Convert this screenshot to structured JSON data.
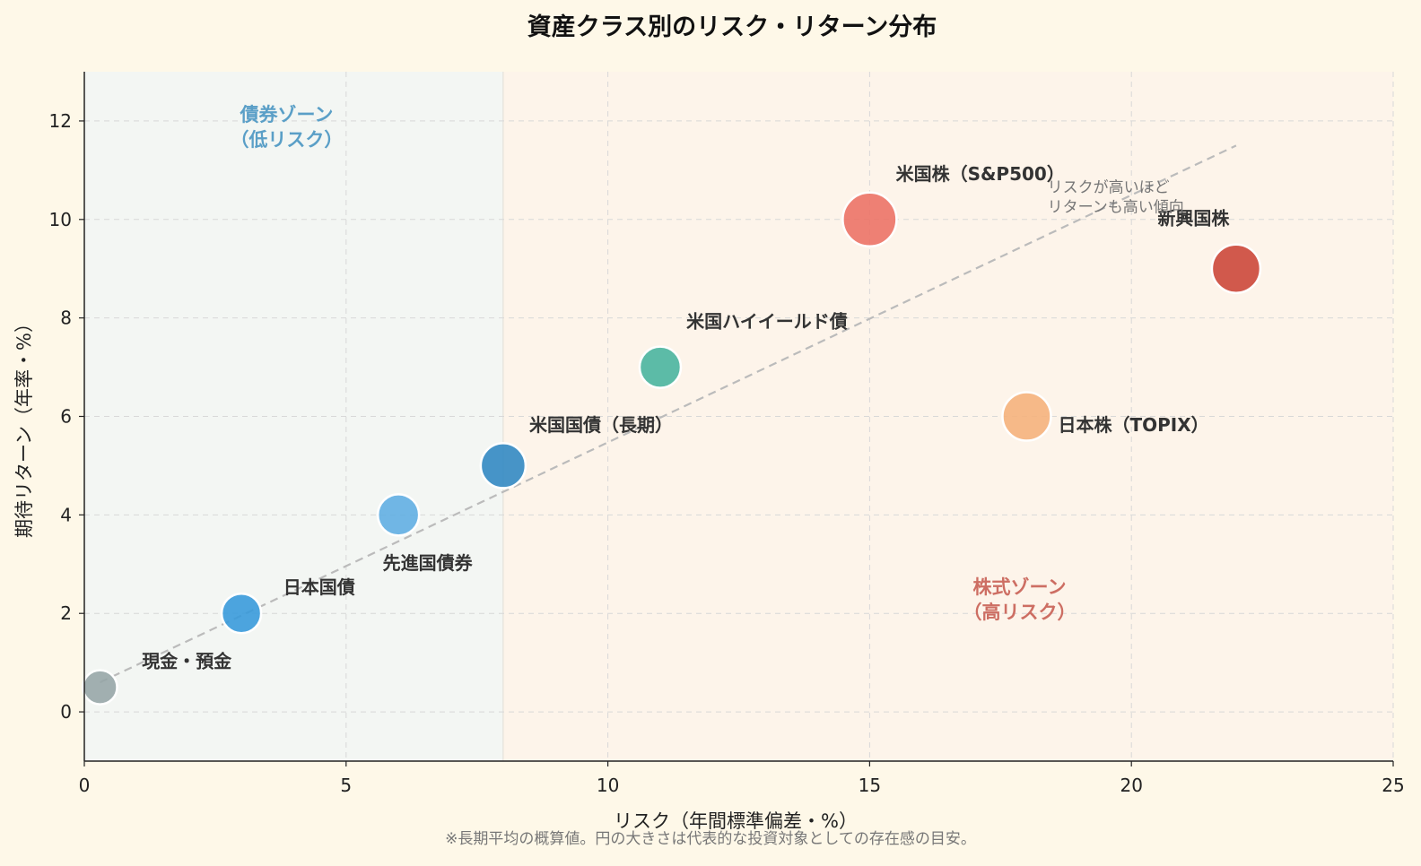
{
  "chart_data": {
    "type": "scatter",
    "title": "資産クラス別のリスク・リターン分布",
    "xlabel": "リスク（年間標準偏差・%）",
    "ylabel": "期待リターン（年率・%）",
    "xlim": [
      0,
      25
    ],
    "ylim": [
      -1,
      13
    ],
    "xticks": [
      0,
      5,
      10,
      15,
      20,
      25
    ],
    "yticks": [
      0,
      2,
      4,
      6,
      8,
      10,
      12
    ],
    "grid": true,
    "points": [
      {
        "name": "現金・預金",
        "x": 0.3,
        "y": 0.5,
        "size": 19,
        "color": "#95a5a6",
        "label_dx": 0.8,
        "label_dy": 0.4
      },
      {
        "name": "日本国債",
        "x": 3,
        "y": 2,
        "size": 22,
        "color": "#3498db",
        "label_dx": 0.8,
        "label_dy": 0.4
      },
      {
        "name": "先進国債券",
        "x": 6,
        "y": 4,
        "size": 23,
        "color": "#5dade2",
        "label_dx": -0.3,
        "label_dy": -1.1
      },
      {
        "name": "米国国債（長期）",
        "x": 8,
        "y": 5,
        "size": 25,
        "color": "#2e86c1",
        "label_dx": 0.5,
        "label_dy": 0.7
      },
      {
        "name": "米国ハイイールド債",
        "x": 11,
        "y": 7,
        "size": 23,
        "color": "#45b39d",
        "label_dx": 0.5,
        "label_dy": 0.8
      },
      {
        "name": "米国株（S&P500）",
        "x": 15,
        "y": 10,
        "size": 30,
        "color": "#ec7063",
        "label_dx": 0.5,
        "label_dy": 0.8
      },
      {
        "name": "日本株（TOPIX）",
        "x": 18,
        "y": 6,
        "size": 27,
        "color": "#f5b07a",
        "label_dx": 0.6,
        "label_dy": -0.3
      },
      {
        "name": "新興国株",
        "x": 22,
        "y": 9,
        "size": 27,
        "color": "#cb4335",
        "label_dx": -1.5,
        "label_dy": 0.9
      }
    ],
    "trendline": {
      "x": [
        0.3,
        22
      ],
      "y": [
        0.6,
        11.5
      ]
    },
    "zones": [
      {
        "label_lines": [
          "債券ゾーン",
          "（低リスク）"
        ],
        "x_from": 0,
        "x_to": 8,
        "color": "#5a9fc7",
        "fill": "#f3f6f3",
        "label_x": 4,
        "label_y": 12
      },
      {
        "label_lines": [
          "株式ゾーン",
          "（高リスク）"
        ],
        "x_from": 8,
        "x_to": 25,
        "color": "#cd6e63",
        "fill": "#fdf4ea",
        "label_x": 18,
        "label_y": 2.4
      }
    ],
    "annotation": {
      "lines": [
        "リスクが高いほど",
        "リターンも高い傾向"
      ],
      "x": 18.5,
      "y": 10.55
    }
  },
  "footnote": "※長期平均の概算値。円の大きさは代表的な投資対象としての存在感の目安。"
}
